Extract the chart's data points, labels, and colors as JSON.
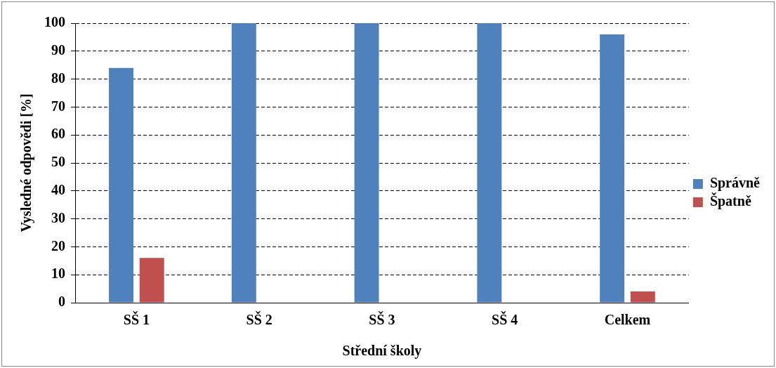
{
  "chart_data": {
    "type": "bar",
    "categories": [
      "SŠ 1",
      "SŠ 2",
      "SŠ 3",
      "SŠ 4",
      "Celkem"
    ],
    "series": [
      {
        "name": "Správně",
        "color": "#4f81bd",
        "values": [
          84,
          100,
          100,
          100,
          96
        ]
      },
      {
        "name": "Špatně",
        "color": "#c0504d",
        "values": [
          16,
          0,
          0,
          0,
          4
        ]
      }
    ],
    "xlabel": "Střední školy",
    "ylabel": "Vysledné odpovědi [%]",
    "ylim": [
      0,
      100
    ],
    "yticks": [
      0,
      10,
      20,
      30,
      40,
      50,
      60,
      70,
      80,
      90,
      100
    ],
    "grid": "y",
    "legend": "right"
  }
}
